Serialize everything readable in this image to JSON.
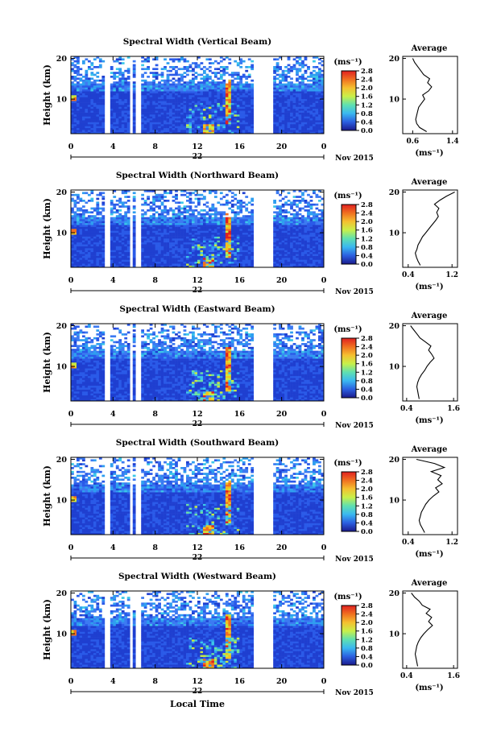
{
  "figure": {
    "xlabel_bottom": "Local Time",
    "colorbar_unit": "(ms⁻¹)",
    "colorbar_ticks": [
      "2.8",
      "2.4",
      "2.0",
      "1.6",
      "1.2",
      "0.8",
      "0.4",
      "0.0"
    ],
    "colorbar_stops": [
      "#1a1a8c",
      "#2b5fe0",
      "#3ab8f0",
      "#5fe0b0",
      "#c8f04a",
      "#f5c030",
      "#f07020",
      "#e02020"
    ],
    "date_label": "Nov 2015",
    "avg_title": "Average",
    "avg_xunit": "(ms⁻¹)",
    "ylabel": "Height (km)"
  },
  "chart_data": [
    {
      "type": "heatmap",
      "title": "Spectral Width (Vertical Beam)",
      "ylabel": "Height (km)",
      "x_ticks": [
        "0",
        "4",
        "8",
        "12",
        "16",
        "20",
        "0"
      ],
      "y_ticks": [
        "20",
        "10"
      ],
      "day_label": "22",
      "xlim_hours": [
        0,
        24
      ],
      "ylim_km": [
        1.5,
        20.5
      ],
      "data_gaps_hours": [
        [
          3.2,
          3.6
        ],
        [
          5.6,
          5.9
        ],
        [
          6.2,
          6.6
        ],
        [
          17.4,
          19.3
        ]
      ],
      "enhanced_regions": [
        {
          "x_hours": [
            12.5,
            13.5
          ],
          "y_km": [
            1.5,
            4
          ],
          "value": 2.8
        },
        {
          "x_hours": [
            14.8,
            15.3
          ],
          "y_km": [
            4,
            15
          ],
          "value": 2.8
        },
        {
          "x_hours": [
            0.1,
            0.5
          ],
          "y_km": [
            9.5,
            11
          ],
          "value": 2.6
        }
      ],
      "colorbar_range": [
        0,
        2.8
      ],
      "average": {
        "xticks": [
          "0.6",
          "1.4"
        ],
        "xlim": [
          0.4,
          1.5
        ],
        "yticks": [
          "20",
          "10"
        ],
        "height_km": [
          2,
          3,
          4,
          5,
          6,
          7,
          8,
          9,
          10,
          11,
          12,
          13,
          14,
          15,
          16,
          17,
          18,
          19,
          20
        ],
        "width": [
          0.88,
          0.74,
          0.68,
          0.66,
          0.68,
          0.7,
          0.72,
          0.78,
          0.84,
          0.8,
          0.92,
          0.98,
          0.9,
          0.94,
          0.82,
          0.76,
          0.7,
          0.64,
          0.6
        ]
      }
    },
    {
      "type": "heatmap",
      "title": "Spectral Width (Northward Beam)",
      "ylabel": "Height (km)",
      "x_ticks": [
        "0",
        "4",
        "8",
        "12",
        "16",
        "20",
        "0"
      ],
      "y_ticks": [
        "20",
        "10"
      ],
      "day_label": "22",
      "xlim_hours": [
        0,
        24
      ],
      "ylim_km": [
        1.5,
        20.5
      ],
      "data_gaps_hours": [
        [
          3.2,
          3.6
        ],
        [
          5.6,
          5.9
        ],
        [
          6.2,
          6.6
        ],
        [
          17.4,
          19.3
        ]
      ],
      "enhanced_regions": [
        {
          "x_hours": [
            12.5,
            13.5
          ],
          "y_km": [
            1.5,
            4
          ],
          "value": 2.8
        },
        {
          "x_hours": [
            14.8,
            15.3
          ],
          "y_km": [
            4,
            15
          ],
          "value": 2.8
        },
        {
          "x_hours": [
            0.1,
            0.5
          ],
          "y_km": [
            9.5,
            11
          ],
          "value": 2.6
        }
      ],
      "colorbar_range": [
        0,
        2.8
      ],
      "average": {
        "xticks": [
          "0.4",
          "1.2"
        ],
        "xlim": [
          0.3,
          1.3
        ],
        "yticks": [
          "20",
          "10"
        ],
        "height_km": [
          2,
          3,
          4,
          5,
          6,
          7,
          8,
          9,
          10,
          11,
          12,
          13,
          14,
          15,
          16,
          17,
          18,
          19,
          20
        ],
        "width": [
          0.62,
          0.58,
          0.55,
          0.53,
          0.56,
          0.58,
          0.62,
          0.66,
          0.72,
          0.78,
          0.84,
          0.9,
          0.95,
          0.92,
          0.96,
          0.88,
          0.98,
          1.1,
          1.25
        ]
      }
    },
    {
      "type": "heatmap",
      "title": "Spectral Width (Eastward Beam)",
      "ylabel": "Height (km)",
      "x_ticks": [
        "0",
        "4",
        "8",
        "12",
        "16",
        "20",
        "0"
      ],
      "y_ticks": [
        "20",
        "10"
      ],
      "day_label": "22",
      "xlim_hours": [
        0,
        24
      ],
      "ylim_km": [
        1.5,
        20.5
      ],
      "data_gaps_hours": [
        [
          3.2,
          3.6
        ],
        [
          5.6,
          5.9
        ],
        [
          6.2,
          6.6
        ],
        [
          17.4,
          19.3
        ]
      ],
      "enhanced_regions": [
        {
          "x_hours": [
            12.5,
            13.5
          ],
          "y_km": [
            1.5,
            4
          ],
          "value": 2.8
        },
        {
          "x_hours": [
            14.8,
            15.3
          ],
          "y_km": [
            4,
            15
          ],
          "value": 2.8
        },
        {
          "x_hours": [
            0.1,
            0.5
          ],
          "y_km": [
            9.5,
            11
          ],
          "value": 2.6
        }
      ],
      "colorbar_range": [
        0,
        2.8
      ],
      "average": {
        "xticks": [
          "0.4",
          "1.6"
        ],
        "xlim": [
          0.3,
          1.7
        ],
        "yticks": [
          "20",
          "10"
        ],
        "height_km": [
          2,
          3,
          4,
          5,
          6,
          7,
          8,
          9,
          10,
          11,
          12,
          13,
          14,
          15,
          16,
          17,
          18,
          19,
          20
        ],
        "width": [
          0.72,
          0.7,
          0.68,
          0.66,
          0.68,
          0.72,
          0.78,
          0.86,
          0.92,
          1.0,
          1.1,
          1.04,
          0.96,
          1.02,
          0.88,
          0.74,
          0.66,
          0.58,
          0.5
        ]
      }
    },
    {
      "type": "heatmap",
      "title": "Spectral Width (Southward Beam)",
      "ylabel": "Height (km)",
      "x_ticks": [
        "0",
        "4",
        "8",
        "12",
        "16",
        "20",
        "0"
      ],
      "y_ticks": [
        "20",
        "10"
      ],
      "day_label": "22",
      "xlim_hours": [
        0,
        24
      ],
      "ylim_km": [
        1.5,
        20.5
      ],
      "data_gaps_hours": [
        [
          3.2,
          3.6
        ],
        [
          5.6,
          5.9
        ],
        [
          6.2,
          6.6
        ],
        [
          17.4,
          19.3
        ]
      ],
      "enhanced_regions": [
        {
          "x_hours": [
            12.5,
            13.5
          ],
          "y_km": [
            1.5,
            4
          ],
          "value": 2.8
        },
        {
          "x_hours": [
            14.8,
            15.3
          ],
          "y_km": [
            4,
            15
          ],
          "value": 2.8
        },
        {
          "x_hours": [
            0.1,
            0.5
          ],
          "y_km": [
            9.5,
            11
          ],
          "value": 2.6
        }
      ],
      "colorbar_range": [
        0,
        2.8
      ],
      "average": {
        "xticks": [
          "0.4",
          "1.2"
        ],
        "xlim": [
          0.3,
          1.3
        ],
        "yticks": [
          "20",
          "10"
        ],
        "height_km": [
          2,
          3,
          4,
          5,
          6,
          7,
          8,
          9,
          10,
          11,
          12,
          13,
          14,
          15,
          16,
          17,
          18,
          19,
          20
        ],
        "width": [
          0.7,
          0.66,
          0.62,
          0.6,
          0.62,
          0.64,
          0.68,
          0.72,
          0.78,
          0.86,
          0.96,
          0.9,
          1.02,
          0.94,
          1.0,
          0.82,
          1.06,
          0.88,
          0.55
        ]
      }
    },
    {
      "type": "heatmap",
      "title": "Spectral Width (Westward Beam)",
      "ylabel": "Height (km)",
      "x_ticks": [
        "0",
        "4",
        "8",
        "12",
        "16",
        "20",
        "0"
      ],
      "y_ticks": [
        "20",
        "10"
      ],
      "day_label": "22",
      "xlim_hours": [
        0,
        24
      ],
      "ylim_km": [
        1.5,
        20.5
      ],
      "data_gaps_hours": [
        [
          3.2,
          3.6
        ],
        [
          5.6,
          5.9
        ],
        [
          6.2,
          6.6
        ],
        [
          17.4,
          19.3
        ]
      ],
      "enhanced_regions": [
        {
          "x_hours": [
            12.5,
            13.5
          ],
          "y_km": [
            1.5,
            4
          ],
          "value": 2.8
        },
        {
          "x_hours": [
            14.8,
            15.3
          ],
          "y_km": [
            4,
            15
          ],
          "value": 2.8
        },
        {
          "x_hours": [
            0.1,
            0.5
          ],
          "y_km": [
            9.5,
            11
          ],
          "value": 2.6
        }
      ],
      "colorbar_range": [
        0,
        2.8
      ],
      "average": {
        "xticks": [
          "0.4",
          "1.6"
        ],
        "xlim": [
          0.3,
          1.7
        ],
        "yticks": [
          "20",
          "10"
        ],
        "height_km": [
          2,
          3,
          4,
          5,
          6,
          7,
          8,
          9,
          10,
          11,
          12,
          13,
          14,
          15,
          16,
          17,
          18,
          19,
          20
        ],
        "width": [
          0.68,
          0.66,
          0.64,
          0.62,
          0.64,
          0.66,
          0.7,
          0.76,
          0.84,
          0.94,
          1.06,
          0.96,
          1.04,
          0.9,
          1.0,
          0.8,
          0.72,
          0.6,
          0.52
        ]
      }
    }
  ]
}
